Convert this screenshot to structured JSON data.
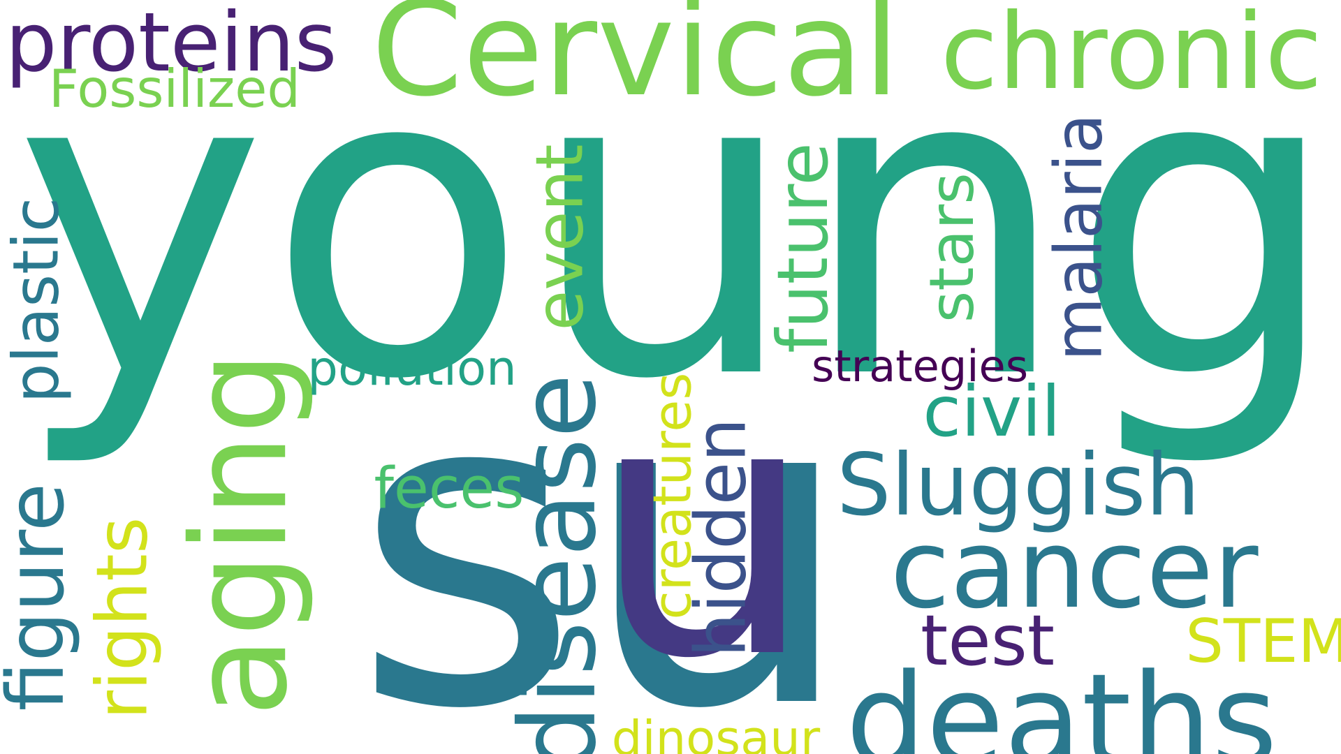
{
  "words": [
    {
      "id": "young",
      "text": "young",
      "color": "#22a286"
    },
    {
      "id": "su",
      "text": "su",
      "color": "#2a788e"
    },
    {
      "id": "u",
      "text": "u",
      "color": "#443983"
    },
    {
      "id": "cervical",
      "text": "Cervical",
      "color": "#7ad151"
    },
    {
      "id": "chronic",
      "text": "chronic",
      "color": "#7ad151"
    },
    {
      "id": "proteins",
      "text": "proteins",
      "color": "#482173"
    },
    {
      "id": "fossilized",
      "text": "Fossilized",
      "color": "#7ad151"
    },
    {
      "id": "plastic",
      "text": "plastic",
      "color": "#2a788e"
    },
    {
      "id": "figure",
      "text": "figure",
      "color": "#2a788e"
    },
    {
      "id": "rights",
      "text": "rights",
      "color": "#d2e21b"
    },
    {
      "id": "aging",
      "text": "aging",
      "color": "#7ad151"
    },
    {
      "id": "pollution",
      "text": "pollution",
      "color": "#22a286"
    },
    {
      "id": "feces",
      "text": "feces",
      "color": "#4ac16d"
    },
    {
      "id": "disease",
      "text": "disease",
      "color": "#2a788e"
    },
    {
      "id": "event",
      "text": "event",
      "color": "#7ad151"
    },
    {
      "id": "creatures",
      "text": "creatures",
      "color": "#d2e21b"
    },
    {
      "id": "hidden",
      "text": "hidden",
      "color": "#3b528b"
    },
    {
      "id": "future",
      "text": "future",
      "color": "#4ac16d"
    },
    {
      "id": "stars",
      "text": "stars",
      "color": "#4ac16d"
    },
    {
      "id": "malaria",
      "text": "malaria",
      "color": "#3b528b"
    },
    {
      "id": "strategies",
      "text": "strategies",
      "color": "#440154"
    },
    {
      "id": "civil",
      "text": "civil",
      "color": "#22a286"
    },
    {
      "id": "sluggish",
      "text": "Sluggish",
      "color": "#2a788e"
    },
    {
      "id": "cancer",
      "text": "cancer",
      "color": "#2a788e"
    },
    {
      "id": "test",
      "text": "test",
      "color": "#482173"
    },
    {
      "id": "stem",
      "text": "STEM",
      "color": "#d2e21b"
    },
    {
      "id": "deaths",
      "text": "deaths",
      "color": "#2a788e"
    },
    {
      "id": "dinosaur",
      "text": "dinosaur",
      "color": "#d2e21b"
    }
  ]
}
